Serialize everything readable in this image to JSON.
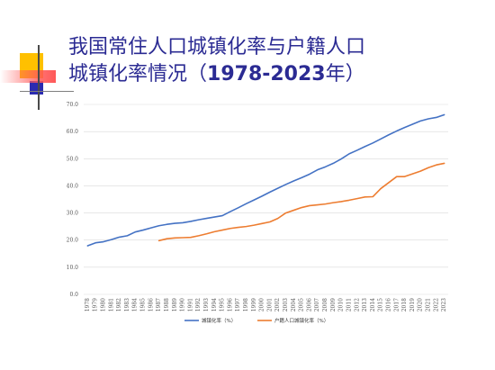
{
  "slide": {
    "title_line1": "我国常住人口城镇化率与户籍人口",
    "title_line2_prefix": "城镇化率情况（",
    "title_line2_years": "1978-2023",
    "title_line2_suffix": "年）"
  },
  "colors": {
    "title": "#2b2b93",
    "series_resident": "#4472c4",
    "series_registered": "#ed7d31",
    "deco_yellow": "#ffc000",
    "deco_red": "#ff3b3b",
    "deco_blue": "#2b2bb0"
  },
  "chart_data": {
    "type": "line",
    "x": [
      1978,
      1979,
      1980,
      1981,
      1982,
      1983,
      1984,
      1985,
      1986,
      1987,
      1988,
      1989,
      1990,
      1991,
      1992,
      1993,
      1994,
      1995,
      1996,
      1997,
      1998,
      1999,
      2000,
      2001,
      2002,
      2003,
      2004,
      2005,
      2006,
      2007,
      2008,
      2009,
      2010,
      2011,
      2012,
      2013,
      2014,
      2015,
      2016,
      2017,
      2018,
      2019,
      2020,
      2021,
      2022,
      2023
    ],
    "xticks": [
      "1978",
      "1979",
      "1980",
      "1981",
      "1982",
      "1983",
      "1984",
      "1985",
      "1986",
      "1987",
      "1988",
      "1989",
      "1990",
      "1991",
      "1992",
      "1993",
      "1994",
      "1995",
      "1996",
      "1997",
      "1998",
      "1999",
      "2000",
      "2001",
      "2002",
      "2003",
      "2004",
      "2005",
      "2006",
      "2007",
      "2008",
      "2009",
      "2010",
      "2011",
      "2012",
      "2013",
      "2014",
      "2015",
      "2016",
      "2017",
      "2018",
      "2019",
      "2020",
      "2021",
      "2022",
      "2023"
    ],
    "yticks": [
      "0.0",
      "10.0",
      "20.0",
      "30.0",
      "40.0",
      "50.0",
      "60.0",
      "70.0"
    ],
    "ylim": [
      0,
      70
    ],
    "series": [
      {
        "name": "城镇化率（%）",
        "color": "#4472c4",
        "values": [
          17.9,
          19.0,
          19.4,
          20.2,
          21.1,
          21.6,
          23.0,
          23.7,
          24.5,
          25.3,
          25.8,
          26.2,
          26.4,
          26.9,
          27.5,
          28.0,
          28.5,
          29.0,
          30.5,
          31.9,
          33.4,
          34.8,
          36.2,
          37.7,
          39.1,
          40.5,
          41.8,
          43.0,
          44.3,
          45.9,
          47.0,
          48.3,
          49.9,
          51.8,
          53.1,
          54.5,
          55.8,
          57.3,
          58.8,
          60.2,
          61.5,
          62.7,
          63.9,
          64.7,
          65.2,
          66.2
        ]
      },
      {
        "name": "户籍人口城镇化率（%）",
        "color": "#ed7d31",
        "values": [
          null,
          null,
          null,
          null,
          null,
          null,
          null,
          null,
          null,
          19.8,
          20.5,
          20.8,
          20.9,
          21.0,
          21.6,
          22.3,
          23.1,
          23.7,
          24.3,
          24.7,
          25.0,
          25.5,
          26.1,
          26.7,
          28.0,
          30.0,
          31.0,
          32.0,
          32.7,
          33.0,
          33.3,
          33.8,
          34.2,
          34.7,
          35.3,
          35.9,
          36.0,
          39.0,
          41.2,
          43.4,
          43.4,
          44.4,
          45.4,
          46.7,
          47.7,
          48.3
        ]
      }
    ]
  }
}
